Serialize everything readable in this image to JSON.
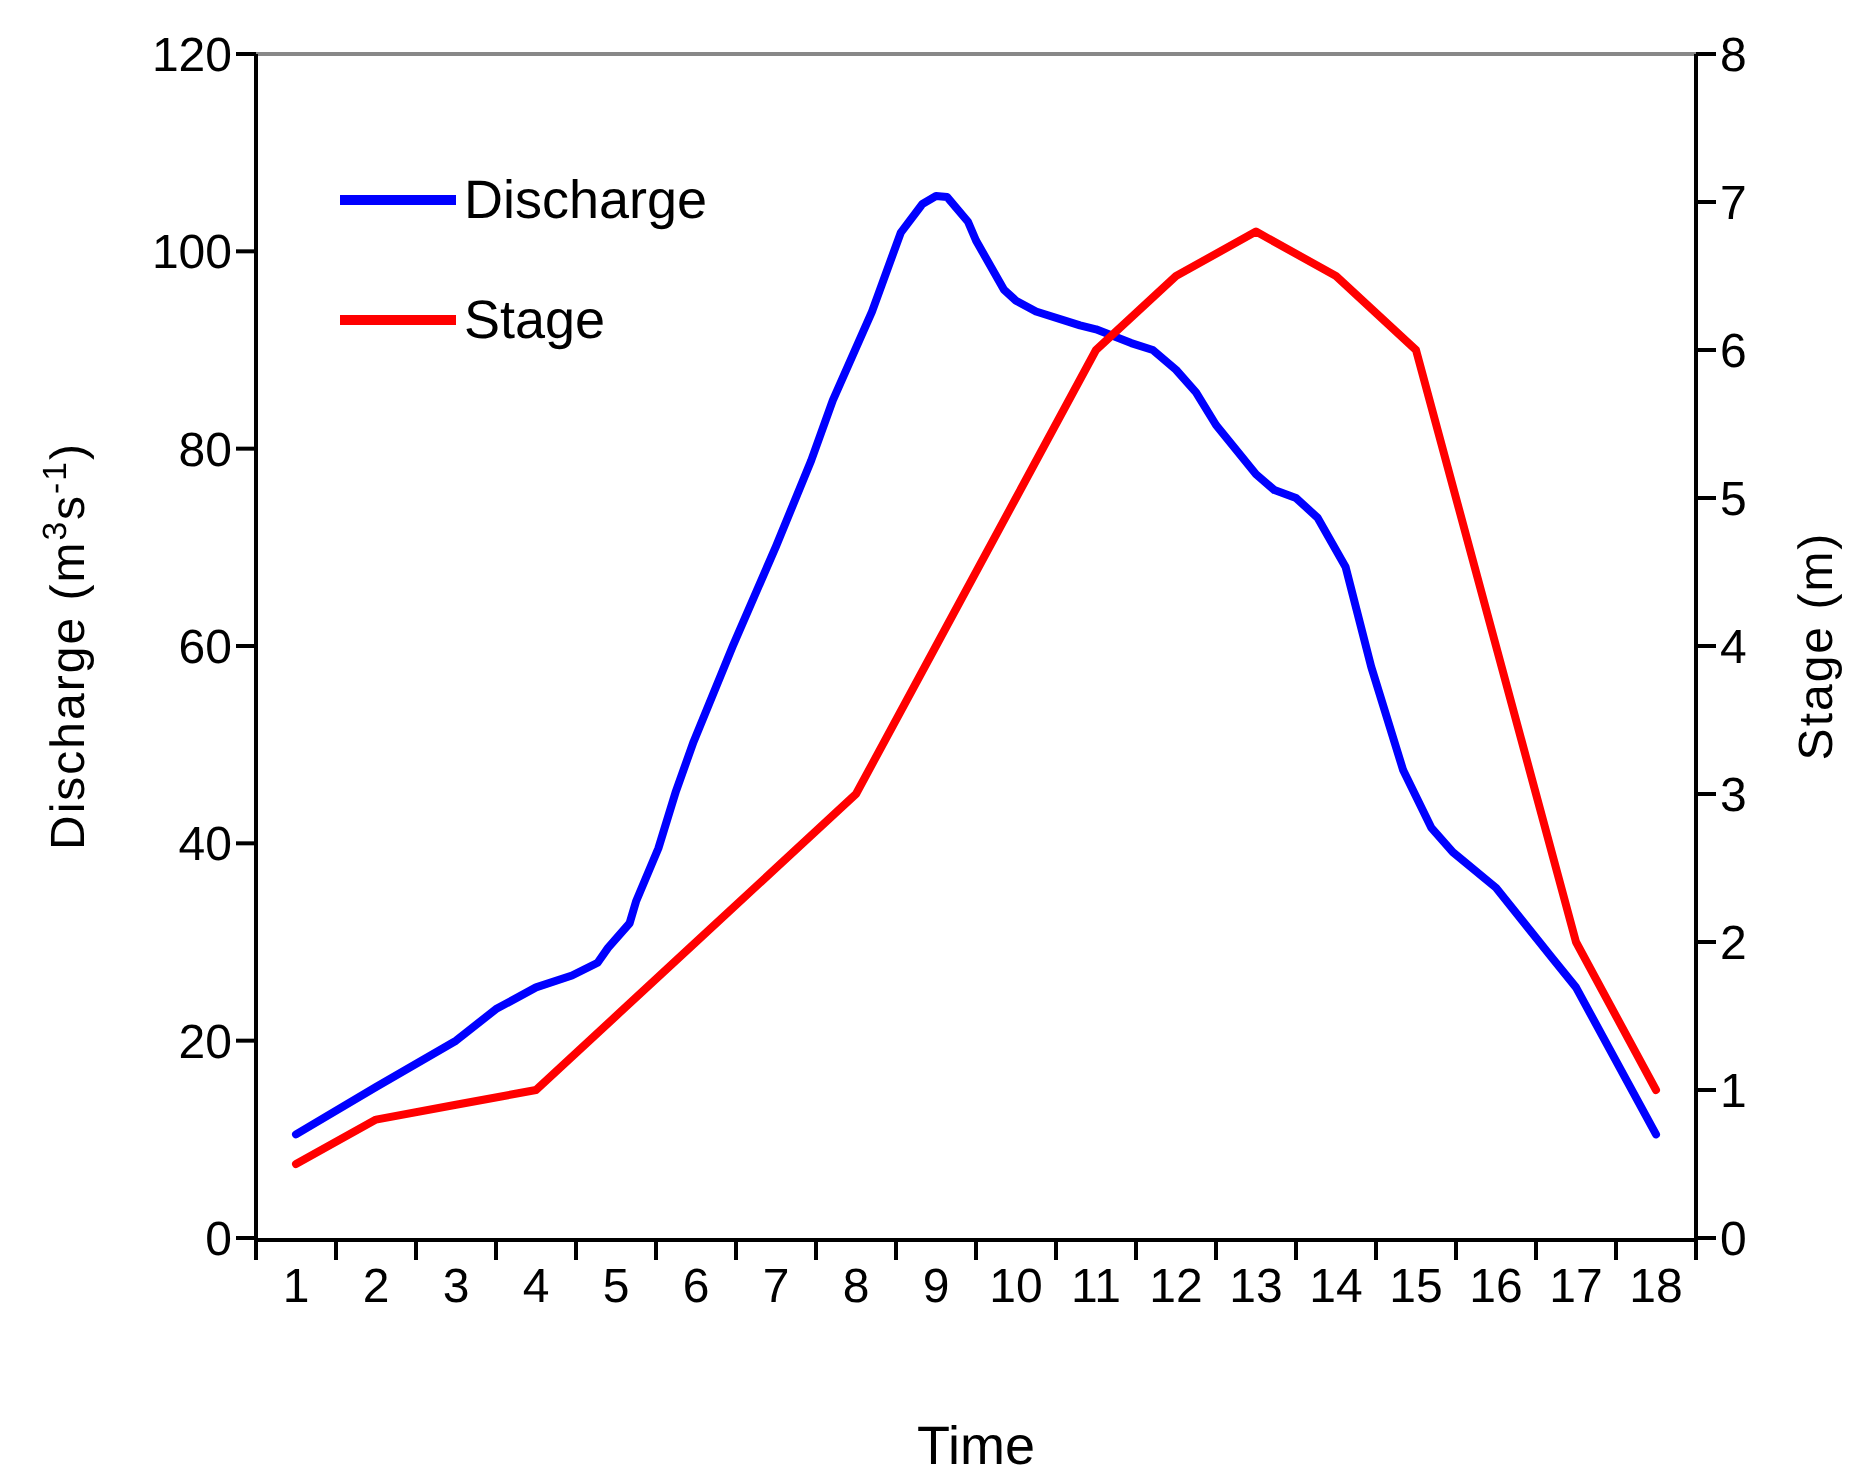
{
  "chart_data": {
    "type": "line",
    "xlabel": "Time",
    "ylabel": "Discharge (m$^{3}$s$^{-1}$)",
    "y2label": "Stage (m)",
    "xlim": [
      0.5,
      18.5
    ],
    "xticks": [
      {
        "value": 0.5,
        "label": null
      },
      1,
      {
        "value": 1.5,
        "label": null
      },
      2,
      {
        "value": 2.5,
        "label": null
      },
      3,
      {
        "value": 3.5,
        "label": null
      },
      4,
      {
        "value": 4.5,
        "label": null
      },
      5,
      {
        "value": 5.5,
        "label": null
      },
      6,
      {
        "value": 6.5,
        "label": null
      },
      7,
      {
        "value": 7.5,
        "label": null
      },
      8,
      {
        "value": 8.5,
        "label": null
      },
      9,
      {
        "value": 9.5,
        "label": null
      },
      10,
      {
        "value": 10.5,
        "label": null
      },
      11,
      {
        "value": 11.5,
        "label": null
      },
      12,
      {
        "value": 12.5,
        "label": null
      },
      13,
      {
        "value": 13.5,
        "label": null
      },
      14,
      {
        "value": 14.5,
        "label": null
      },
      15,
      {
        "value": 15.5,
        "label": null
      },
      16,
      {
        "value": 16.5,
        "label": null
      },
      17,
      {
        "value": 17.5,
        "label": null
      },
      18,
      {
        "value": 18.5,
        "label": null
      }
    ],
    "ylim": [
      0,
      120
    ],
    "yticks": [
      0,
      20,
      40,
      60,
      80,
      100,
      120
    ],
    "y2lim": [
      0,
      8
    ],
    "y2ticks": [
      0,
      1,
      2,
      3,
      4,
      5,
      6,
      7,
      8
    ],
    "grid": false,
    "legend": "top left",
    "marker": "none",
    "line_style": "solid",
    "series": [
      {
        "name": "Discharge",
        "color": "#0000ff",
        "x": [
          1.0,
          2.0,
          3.0,
          3.5,
          4.0,
          4.45,
          4.77,
          4.9,
          5.17,
          5.25,
          5.53,
          5.75,
          5.97,
          6.46,
          7.0,
          7.44,
          7.71,
          8.2,
          8.56,
          8.83,
          9.0,
          9.14,
          9.4,
          9.5,
          9.85,
          10.0,
          10.25,
          10.8,
          11.0,
          11.44,
          11.71,
          12.0,
          12.25,
          12.5,
          13.0,
          13.23,
          13.5,
          13.77,
          14.12,
          14.44,
          14.84,
          15.19,
          15.46,
          16.0,
          16.71,
          17.0,
          18.0
        ],
        "values": [
          10.5,
          15.3,
          20,
          23.2,
          25.4,
          26.6,
          27.9,
          29.4,
          31.9,
          34.1,
          39.5,
          45.3,
          50.3,
          60,
          70.1,
          78.8,
          84.9,
          93.9,
          101.9,
          104.8,
          105.6,
          105.5,
          103,
          101.1,
          96.1,
          95,
          93.9,
          92.5,
          92.1,
          90.7,
          90,
          88,
          85.7,
          82.4,
          77.4,
          75.8,
          75,
          73,
          68,
          57.9,
          47.4,
          41.6,
          39.1,
          35.5,
          28.3,
          25.4,
          10.5
        ]
      },
      {
        "name": "Stage",
        "color": "#ff0000",
        "axis": "y2",
        "x": [
          1,
          2,
          3,
          4,
          5,
          6,
          7,
          8,
          9,
          10,
          11,
          12,
          13,
          14,
          15,
          16,
          17,
          18
        ],
        "values": [
          0.5,
          0.8,
          0.9,
          1.0,
          1.5,
          2.0,
          2.5,
          3.0,
          4.0,
          5.0,
          6.0,
          6.5,
          6.8,
          6.5,
          6.0,
          4.0,
          2.0,
          1.0
        ]
      }
    ]
  }
}
